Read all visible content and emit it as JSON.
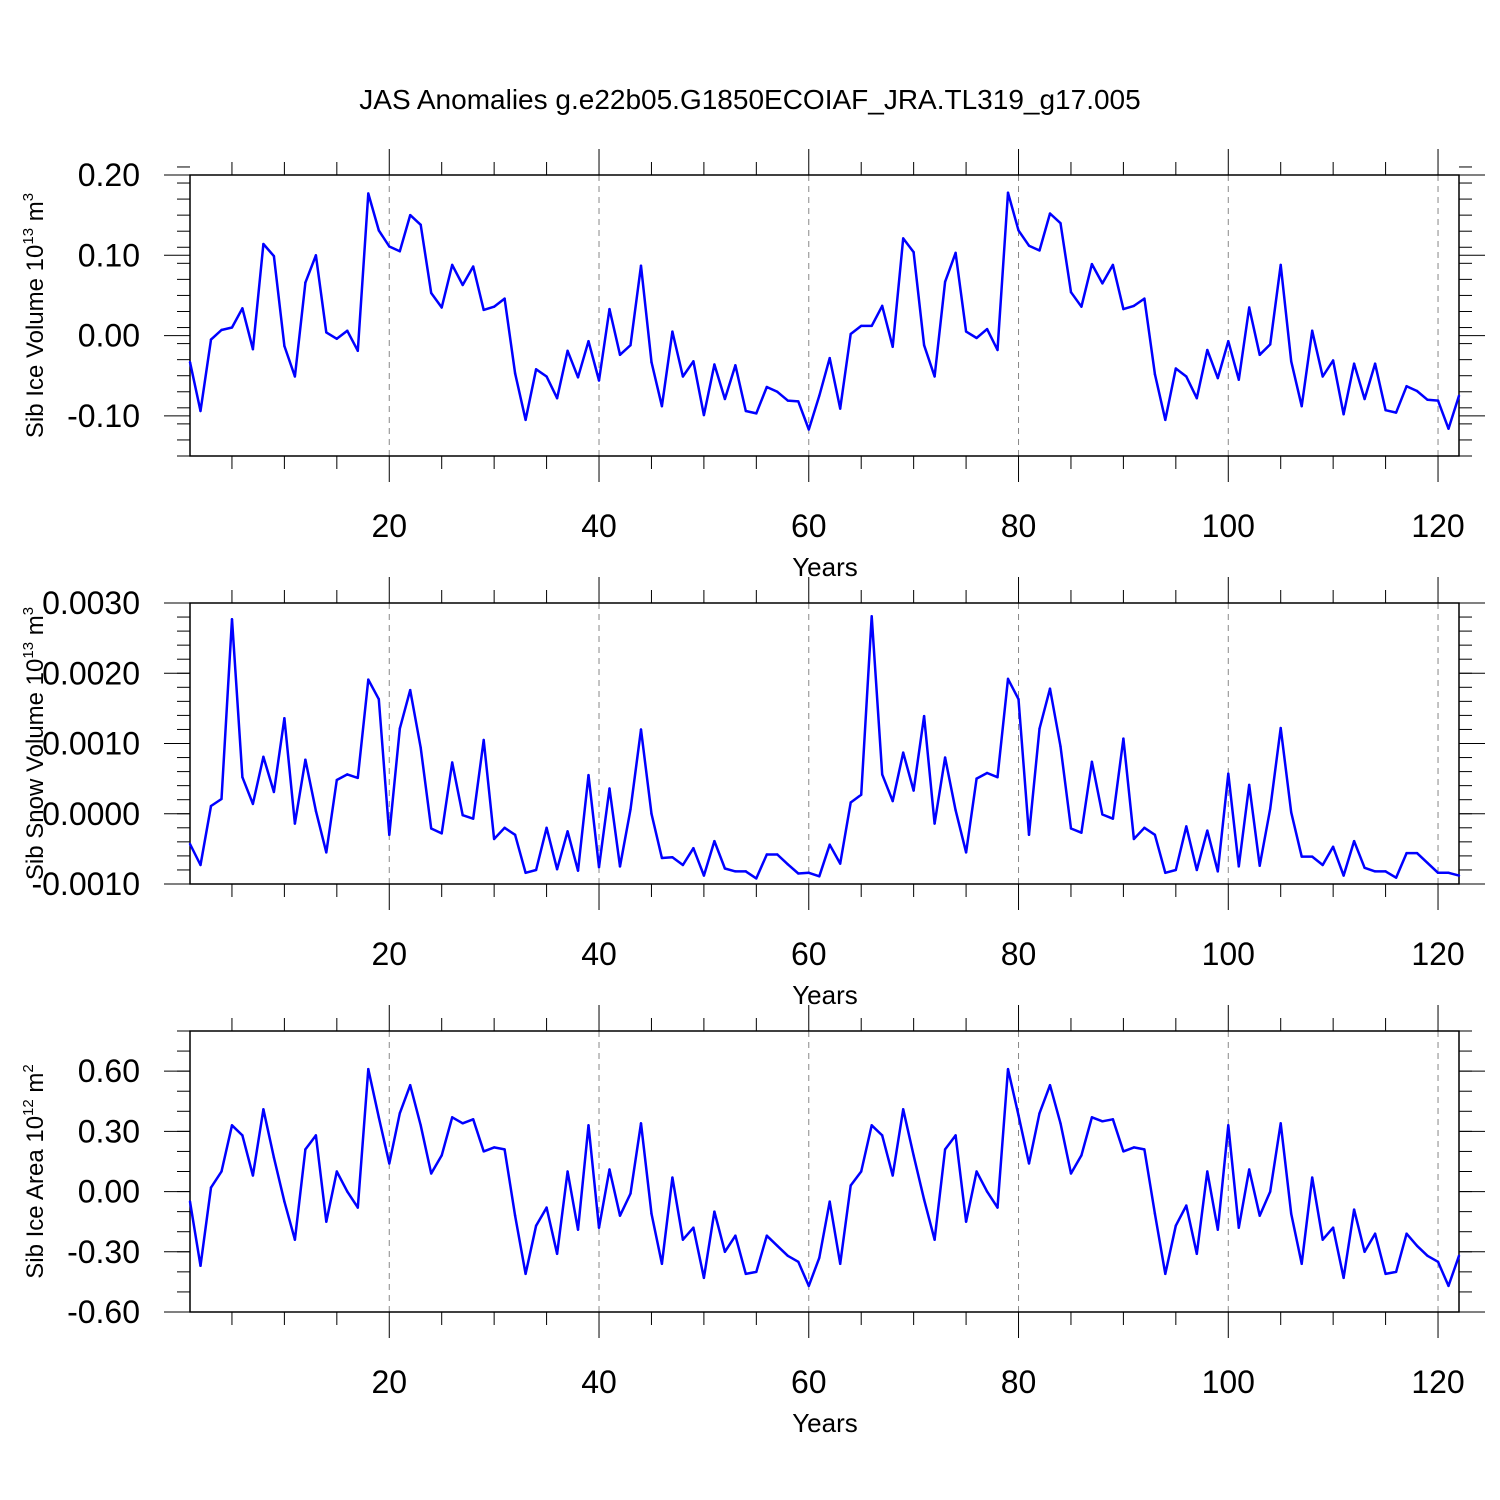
{
  "figure": {
    "title": "JAS Anomalies g.e22b05.G1850ECOIAF_JRA.TL319_g17.005",
    "line_color": "#0000ff",
    "grid_color": "#888888"
  },
  "chart_data": [
    {
      "type": "line",
      "title": "",
      "xlabel": "Years",
      "ylabel": "Sib Ice Volume 10",
      "ylabel_exp": "13",
      "ylabel_unit": "m",
      "ylabel_unit_exp": "3",
      "xlim": [
        1,
        122
      ],
      "ylim": [
        -0.15,
        0.2
      ],
      "xticks": [
        20,
        40,
        60,
        80,
        100,
        120
      ],
      "xtick_labels": [
        "20",
        "40",
        "60",
        "80",
        "100",
        "120"
      ],
      "yticks": [
        0.2,
        0.1,
        0.0,
        -0.1
      ],
      "ytick_labels": [
        "0.20",
        "0.10",
        "0.00",
        "-0.10"
      ],
      "yminor_step": 0.02,
      "grid_x": [
        20,
        40,
        60,
        80,
        100,
        120
      ],
      "x_start": 1,
      "series": [
        {
          "name": "Sib Ice Volume",
          "values": [
            -0.033,
            -0.094,
            -0.005,
            0.007,
            0.01,
            0.034,
            -0.017,
            0.114,
            0.099,
            -0.013,
            -0.051,
            0.066,
            0.1,
            0.004,
            -0.004,
            0.006,
            -0.019,
            0.177,
            0.131,
            0.111,
            0.105,
            0.15,
            0.138,
            0.053,
            0.035,
            0.088,
            0.063,
            0.086,
            0.032,
            0.036,
            0.046,
            -0.047,
            -0.105,
            -0.042,
            -0.051,
            -0.078,
            -0.019,
            -0.052,
            -0.007,
            -0.056,
            0.033,
            -0.024,
            -0.012,
            0.087,
            -0.033,
            -0.088,
            0.005,
            -0.051,
            -0.032,
            -0.099,
            -0.036,
            -0.079,
            -0.037,
            -0.094,
            -0.097,
            -0.064,
            -0.07,
            -0.081,
            -0.082,
            -0.117,
            -0.075,
            -0.028,
            -0.091,
            0.002,
            0.012,
            0.012,
            0.037,
            -0.014,
            0.121,
            0.104,
            -0.012,
            -0.051,
            0.067,
            0.103,
            0.005,
            -0.003,
            0.008,
            -0.018,
            0.178,
            0.131,
            0.112,
            0.106,
            0.152,
            0.14,
            0.054,
            0.036,
            0.089,
            0.065,
            0.088,
            0.033,
            0.037,
            0.046,
            -0.048,
            -0.105,
            -0.041,
            -0.051,
            -0.078,
            -0.018,
            -0.053,
            -0.007,
            -0.055,
            0.035,
            -0.024,
            -0.011,
            0.088,
            -0.032,
            -0.088,
            0.006,
            -0.051,
            -0.031,
            -0.098,
            -0.035,
            -0.079,
            -0.035,
            -0.093,
            -0.096,
            -0.063,
            -0.069,
            -0.08,
            -0.081,
            -0.116,
            -0.075
          ]
        }
      ]
    },
    {
      "type": "line",
      "title": "",
      "xlabel": "Years",
      "ylabel": "Sib Snow Volume 10",
      "ylabel_exp": "13",
      "ylabel_unit": "m",
      "ylabel_unit_exp": "3",
      "xlim": [
        1,
        122
      ],
      "ylim": [
        -0.001,
        0.003
      ],
      "xticks": [
        20,
        40,
        60,
        80,
        100,
        120
      ],
      "xtick_labels": [
        "20",
        "40",
        "60",
        "80",
        "100",
        "120"
      ],
      "yticks": [
        0.003,
        0.002,
        0.001,
        0.0,
        -0.001
      ],
      "ytick_labels": [
        "0.0030",
        "0.0020",
        "0.0010",
        "0.0000",
        "-0.0010"
      ],
      "yminor_step": 0.0002,
      "grid_x": [
        20,
        40,
        60,
        80,
        100,
        120
      ],
      "x_start": 1,
      "series": [
        {
          "name": "Sib Snow Volume",
          "values": [
            -0.00043,
            -0.00073,
            0.00011,
            0.00021,
            0.00277,
            0.00052,
            0.00014,
            0.00081,
            0.00031,
            0.00136,
            -0.00014,
            0.00077,
            4e-05,
            -0.00055,
            0.00048,
            0.00056,
            0.00051,
            0.00191,
            0.00163,
            -0.0003,
            0.00121,
            0.00176,
            0.00094,
            -0.00021,
            -0.00028,
            0.00073,
            -2e-05,
            -7e-05,
            0.00105,
            -0.00036,
            -0.0002,
            -0.0003,
            -0.00084,
            -0.0008,
            -0.0002,
            -0.00079,
            -0.00025,
            -0.00081,
            0.00055,
            -0.00076,
            0.00036,
            -0.00075,
            6e-05,
            0.0012,
            0.0,
            -0.00063,
            -0.00062,
            -0.00073,
            -0.00049,
            -0.00088,
            -0.00039,
            -0.00078,
            -0.00082,
            -0.00082,
            -0.00092,
            -0.00058,
            -0.00058,
            -0.00072,
            -0.00085,
            -0.00084,
            -0.00089,
            -0.00044,
            -0.00071,
            0.00016,
            0.00027,
            0.00281,
            0.00056,
            0.00018,
            0.00087,
            0.00033,
            0.00139,
            -0.00014,
            0.0008,
            5e-05,
            -0.00055,
            0.0005,
            0.00058,
            0.00052,
            0.00192,
            0.00163,
            -0.0003,
            0.00121,
            0.00178,
            0.00096,
            -0.00021,
            -0.00027,
            0.00074,
            -1e-05,
            -7e-05,
            0.00107,
            -0.00036,
            -0.0002,
            -0.0003,
            -0.00084,
            -0.0008,
            -0.00018,
            -0.0008,
            -0.00024,
            -0.00082,
            0.00057,
            -0.00075,
            0.00041,
            -0.00074,
            7e-05,
            0.00122,
            2e-05,
            -0.00061,
            -0.00061,
            -0.00073,
            -0.00047,
            -0.00088,
            -0.00039,
            -0.00077,
            -0.00082,
            -0.00082,
            -0.00091,
            -0.00056,
            -0.00056,
            -0.0007,
            -0.00084,
            -0.00084,
            -0.00088
          ]
        }
      ]
    },
    {
      "type": "line",
      "title": "",
      "xlabel": "Years",
      "ylabel": "Sib Ice Area 10",
      "ylabel_exp": "12",
      "ylabel_unit": "m",
      "ylabel_unit_exp": "2",
      "xlim": [
        1,
        122
      ],
      "ylim": [
        -0.6,
        0.8
      ],
      "xticks": [
        20,
        40,
        60,
        80,
        100,
        120
      ],
      "xtick_labels": [
        "20",
        "40",
        "60",
        "80",
        "100",
        "120"
      ],
      "yticks": [
        0.6,
        0.3,
        0.0,
        -0.3,
        -0.6
      ],
      "ytick_labels": [
        "0.60",
        "0.30",
        "0.00",
        "-0.30",
        "-0.60"
      ],
      "yminor_step": 0.1,
      "grid_x": [
        20,
        40,
        60,
        80,
        100,
        120
      ],
      "x_start": 1,
      "series": [
        {
          "name": "Sib Ice Area",
          "values": [
            -0.05,
            -0.37,
            0.02,
            0.1,
            0.33,
            0.28,
            0.08,
            0.41,
            0.17,
            -0.05,
            -0.24,
            0.21,
            0.28,
            -0.15,
            0.1,
            0.0,
            -0.08,
            0.61,
            0.37,
            0.14,
            0.39,
            0.53,
            0.33,
            0.09,
            0.18,
            0.37,
            0.34,
            0.36,
            0.2,
            0.22,
            0.21,
            -0.12,
            -0.41,
            -0.17,
            -0.08,
            -0.31,
            0.1,
            -0.19,
            0.33,
            -0.18,
            0.11,
            -0.12,
            -0.01,
            0.34,
            -0.11,
            -0.36,
            0.07,
            -0.24,
            -0.18,
            -0.43,
            -0.1,
            -0.3,
            -0.22,
            -0.41,
            -0.4,
            -0.22,
            -0.27,
            -0.32,
            -0.35,
            -0.47,
            -0.33,
            -0.05,
            -0.36,
            0.03,
            0.1,
            0.33,
            0.28,
            0.08,
            0.41,
            0.18,
            -0.04,
            -0.24,
            0.21,
            0.28,
            -0.15,
            0.1,
            0.0,
            -0.08,
            0.61,
            0.38,
            0.14,
            0.39,
            0.53,
            0.34,
            0.09,
            0.18,
            0.37,
            0.35,
            0.36,
            0.2,
            0.22,
            0.21,
            -0.11,
            -0.41,
            -0.17,
            -0.07,
            -0.31,
            0.1,
            -0.19,
            0.33,
            -0.18,
            0.11,
            -0.12,
            0.0,
            0.34,
            -0.11,
            -0.36,
            0.07,
            -0.24,
            -0.18,
            -0.43,
            -0.09,
            -0.3,
            -0.21,
            -0.41,
            -0.4,
            -0.21,
            -0.27,
            -0.32,
            -0.35,
            -0.47,
            -0.32
          ]
        }
      ]
    }
  ]
}
